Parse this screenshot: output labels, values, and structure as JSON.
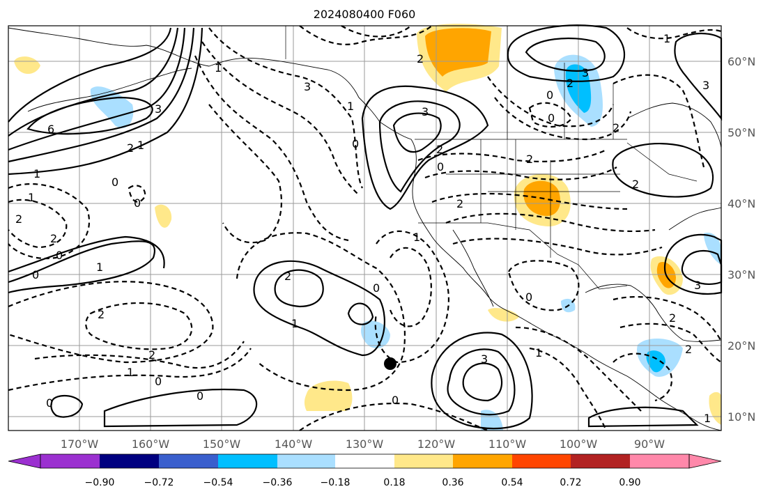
{
  "title": "2024080400 F060",
  "map": {
    "lon_ticks": [
      "170°W",
      "160°W",
      "150°W",
      "140°W",
      "130°W",
      "120°W",
      "110°W",
      "100°W",
      "90°W"
    ],
    "lat_ticks": [
      "60°N",
      "50°N",
      "40°N",
      "30°N",
      "20°N",
      "10°N"
    ],
    "contour_labels": [
      {
        "text": "6"
      },
      {
        "text": "3"
      },
      {
        "text": "2"
      },
      {
        "text": "1"
      },
      {
        "text": "1"
      },
      {
        "text": "0"
      },
      {
        "text": "0"
      },
      {
        "text": "1"
      },
      {
        "text": "2"
      },
      {
        "text": "0"
      },
      {
        "text": "0"
      },
      {
        "text": "1"
      },
      {
        "text": "2"
      },
      {
        "text": "2"
      },
      {
        "text": "1"
      },
      {
        "text": "0"
      },
      {
        "text": "2"
      },
      {
        "text": "2"
      },
      {
        "text": "1"
      },
      {
        "text": "0"
      },
      {
        "text": "0"
      },
      {
        "text": "3"
      },
      {
        "text": "0"
      },
      {
        "text": "1"
      },
      {
        "text": "1"
      },
      {
        "text": "3"
      },
      {
        "text": "2"
      },
      {
        "text": "0"
      },
      {
        "text": "2"
      },
      {
        "text": "2"
      },
      {
        "text": "2"
      },
      {
        "text": "3"
      },
      {
        "text": "2"
      },
      {
        "text": "0"
      },
      {
        "text": "0"
      },
      {
        "text": "1"
      },
      {
        "text": "3"
      },
      {
        "text": "2"
      },
      {
        "text": "2"
      },
      {
        "text": "0"
      },
      {
        "text": "0"
      },
      {
        "text": "0"
      },
      {
        "text": "1"
      },
      {
        "text": "2"
      },
      {
        "text": "2"
      },
      {
        "text": "1"
      },
      {
        "text": "3"
      },
      {
        "text": "3"
      },
      {
        "text": "1"
      }
    ],
    "marker": "storm-center-dot"
  },
  "colorbar": {
    "colors": [
      "#9b30d0",
      "#000080",
      "#3a5fcd",
      "#00bfff",
      "#aadfff",
      "#ffffff",
      "#ffe88a",
      "#ffa500",
      "#ff4500",
      "#b22222",
      "#ff88aa"
    ],
    "tick_labels": [
      "−0.90",
      "−0.72",
      "−0.54",
      "−0.36",
      "−0.18",
      "0.18",
      "0.36",
      "0.54",
      "0.72",
      "0.90"
    ]
  }
}
